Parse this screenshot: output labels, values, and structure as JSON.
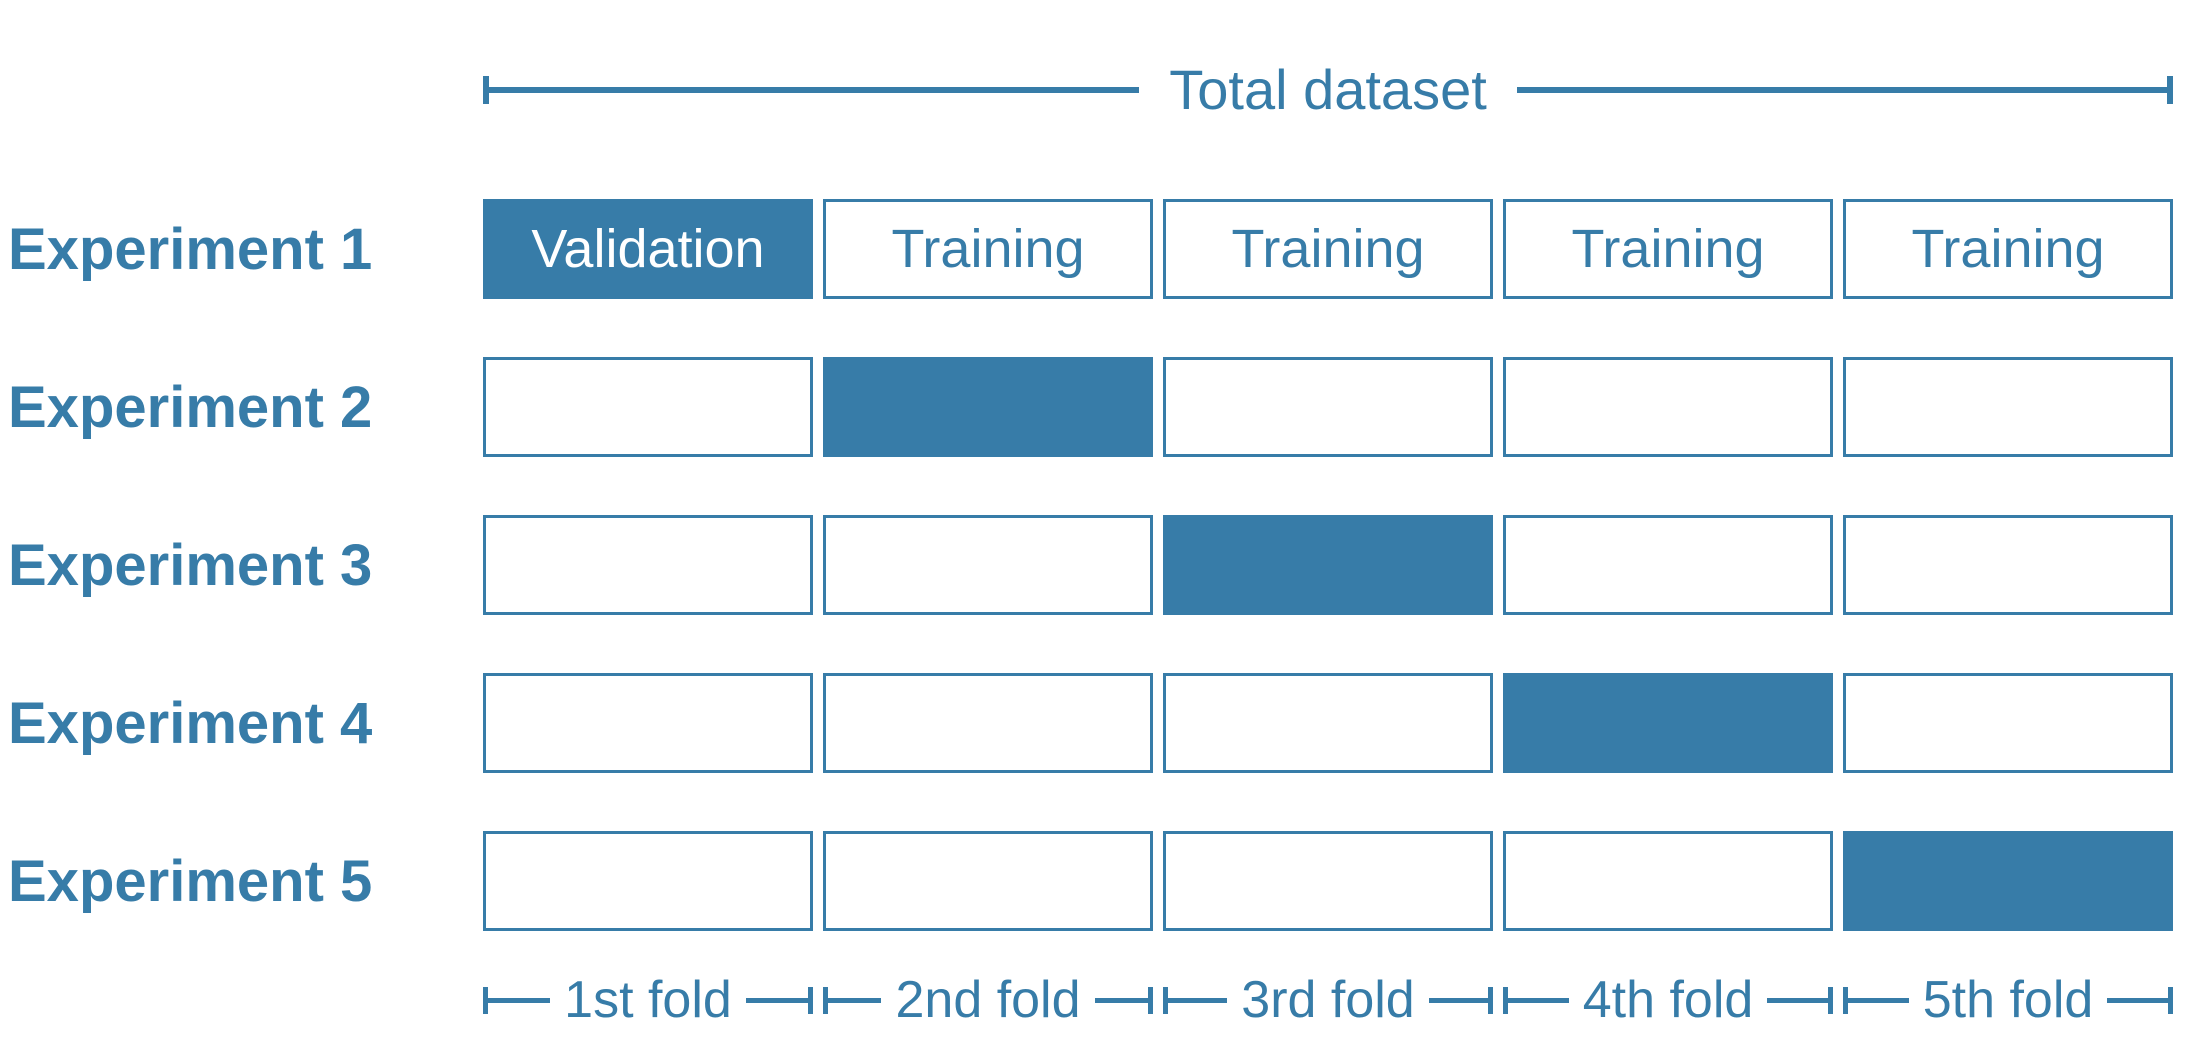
{
  "palette": {
    "blue": "#377CA8",
    "box_fill": "#FFFFFF",
    "filled_cell_text": "#FFFFFF"
  },
  "header": {
    "title": "Total dataset"
  },
  "experiments": [
    {
      "label": "Experiment 1",
      "cells": [
        {
          "text": "Validation",
          "filled": true
        },
        {
          "text": "Training",
          "filled": false
        },
        {
          "text": "Training",
          "filled": false
        },
        {
          "text": "Training",
          "filled": false
        },
        {
          "text": "Training",
          "filled": false
        }
      ]
    },
    {
      "label": "Experiment 2",
      "cells": [
        {
          "text": "",
          "filled": false
        },
        {
          "text": "",
          "filled": true
        },
        {
          "text": "",
          "filled": false
        },
        {
          "text": "",
          "filled": false
        },
        {
          "text": "",
          "filled": false
        }
      ]
    },
    {
      "label": "Experiment 3",
      "cells": [
        {
          "text": "",
          "filled": false
        },
        {
          "text": "",
          "filled": false
        },
        {
          "text": "",
          "filled": true
        },
        {
          "text": "",
          "filled": false
        },
        {
          "text": "",
          "filled": false
        }
      ]
    },
    {
      "label": "Experiment 4",
      "cells": [
        {
          "text": "",
          "filled": false
        },
        {
          "text": "",
          "filled": false
        },
        {
          "text": "",
          "filled": false
        },
        {
          "text": "",
          "filled": true
        },
        {
          "text": "",
          "filled": false
        }
      ]
    },
    {
      "label": "Experiment 5",
      "cells": [
        {
          "text": "",
          "filled": false
        },
        {
          "text": "",
          "filled": false
        },
        {
          "text": "",
          "filled": false
        },
        {
          "text": "",
          "filled": false
        },
        {
          "text": "",
          "filled": true
        }
      ]
    }
  ],
  "fold_labels": [
    "1st fold",
    "2nd fold",
    "3rd fold",
    "4th fold",
    "5th fold"
  ]
}
